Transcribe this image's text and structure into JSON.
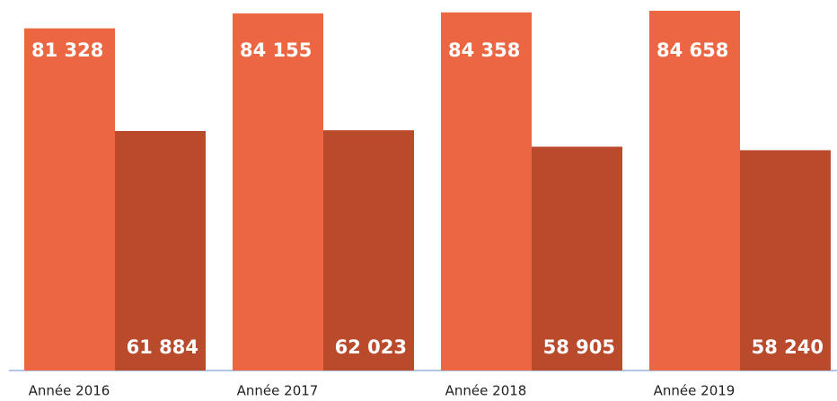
{
  "chart_data": {
    "type": "bar",
    "categories": [
      "Année 2016",
      "Année 2017",
      "Année 2018",
      "Année 2019"
    ],
    "series": [
      {
        "color": "#ec6642",
        "values": [
          81328,
          84155,
          84358,
          84658
        ],
        "value_labels": [
          "81 328",
          "84 155",
          "84 358",
          "84 658"
        ]
      },
      {
        "color": "#b94b2c",
        "values": [
          61884,
          62023,
          58905,
          58240
        ],
        "value_labels": [
          "61 884",
          "62 023",
          "58 905",
          "58 240"
        ]
      }
    ],
    "ylim": [
      16500,
      86700
    ]
  }
}
